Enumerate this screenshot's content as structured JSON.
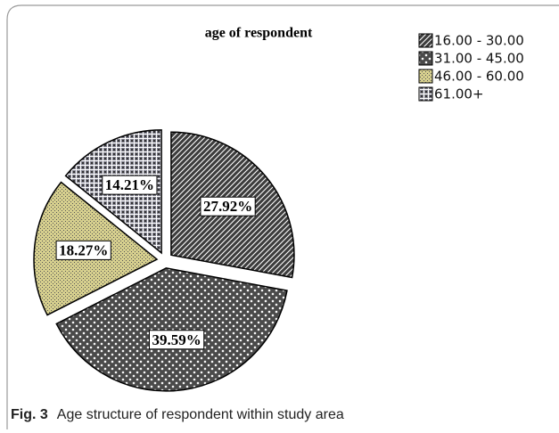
{
  "chart_data": {
    "type": "pie",
    "title": "age of respondent",
    "categories": [
      "16.00 - 30.00",
      "31.00 - 45.00",
      "46.00 - 60.00",
      "61.00+"
    ],
    "values": [
      27.92,
      39.59,
      18.27,
      14.21
    ],
    "value_labels": [
      "27.92%",
      "39.59%",
      "18.27%",
      "14.21%"
    ],
    "colors": [
      "#3c3c3c",
      "#4a4a4a",
      "#d6cf8e",
      "#80808e"
    ],
    "legend": "top-right",
    "figure_label": "Fig. 3",
    "caption": "Age structure of respondent within study area"
  }
}
